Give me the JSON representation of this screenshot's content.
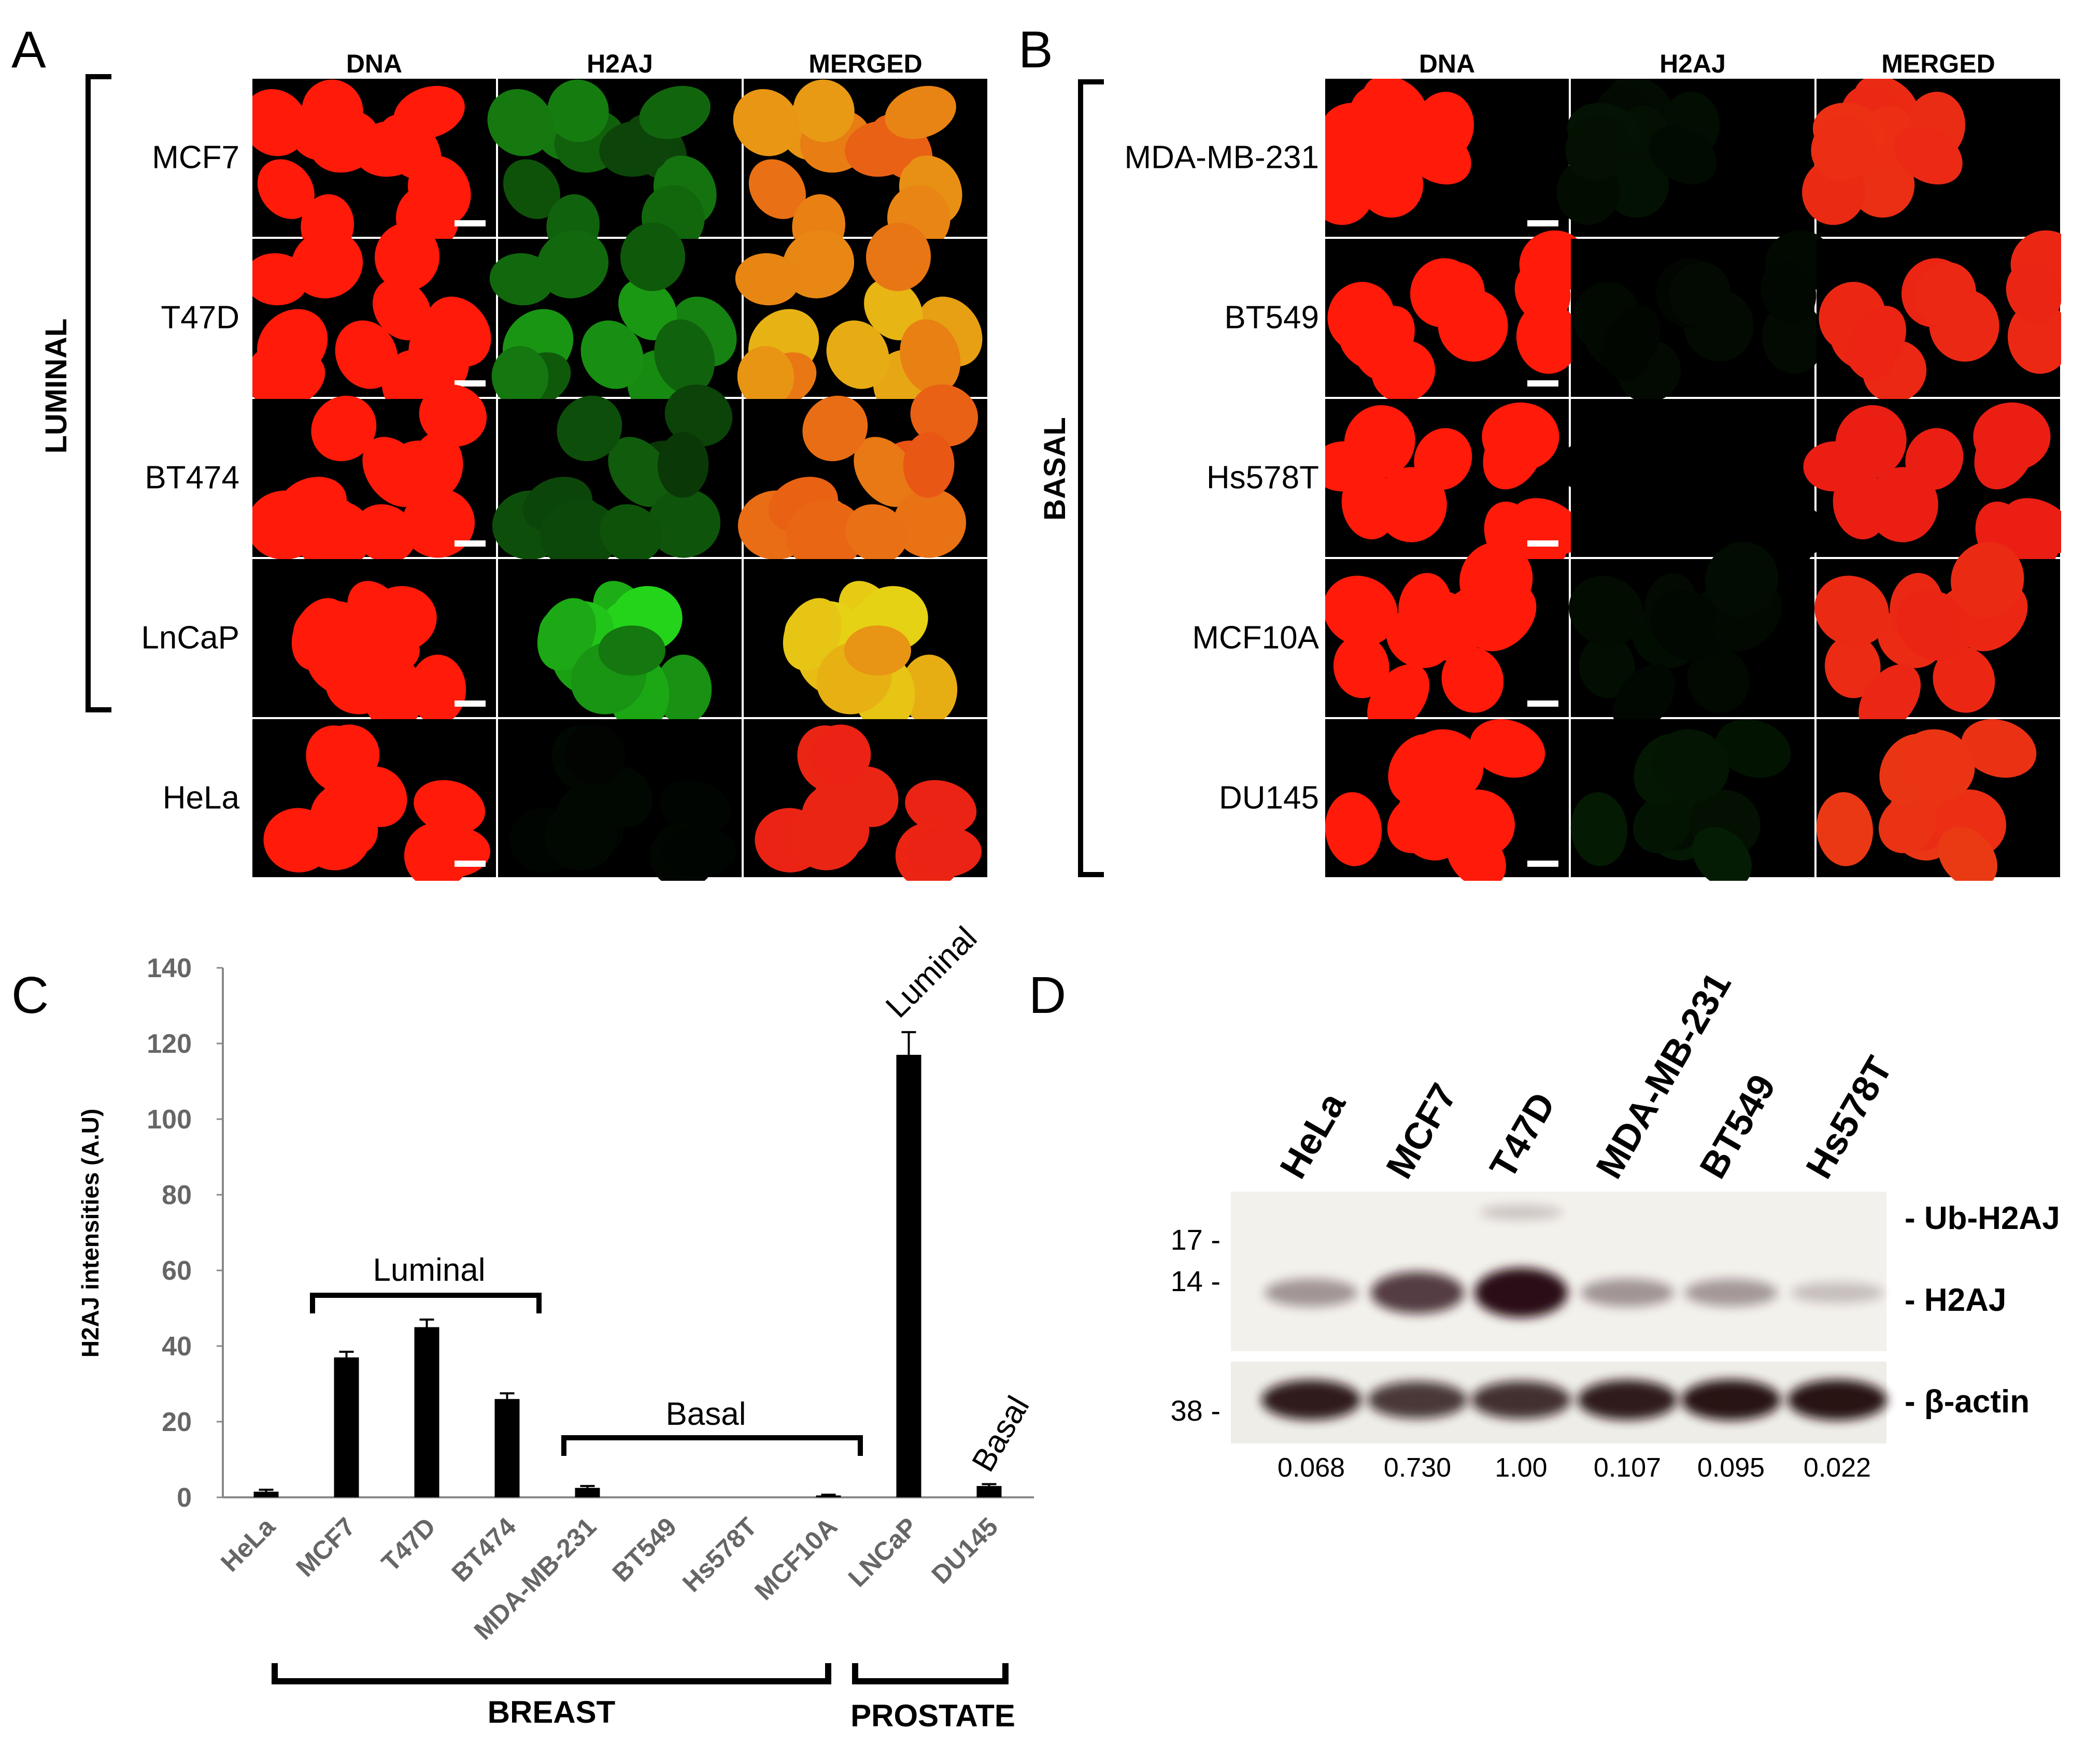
{
  "panel_labels": {
    "a": "A",
    "b": "B",
    "c": "C",
    "d": "D"
  },
  "panel_a": {
    "columns": [
      "DNA",
      "H2AJ",
      "MERGED"
    ],
    "group_label": "LUMINAL",
    "rows": [
      "MCF7",
      "T47D",
      "BT474",
      "LnCaP",
      "HeLa"
    ],
    "h2aj_level": [
      0.55,
      0.65,
      0.4,
      0.95,
      0.03
    ]
  },
  "panel_b": {
    "columns": [
      "DNA",
      "H2AJ",
      "MERGED"
    ],
    "group_label": "BASAL",
    "rows": [
      "MDA-MB-231",
      "BT549",
      "Hs578T",
      "MCF10A",
      "DU145"
    ],
    "h2aj_level": [
      0.08,
      0.05,
      0.0,
      0.06,
      0.12
    ]
  },
  "chart_data": {
    "type": "bar",
    "title": "",
    "ylabel": "H2AJ intensities (A.U)",
    "xlabel": "",
    "ylim": [
      0,
      140
    ],
    "yticks": [
      "0",
      "20",
      "40",
      "60",
      "80",
      "100",
      "120",
      "140"
    ],
    "categories": [
      "HeLa",
      "MCF7",
      "T47D",
      "BT474",
      "MDA-MB-231",
      "BT549",
      "Hs578T",
      "MCF10A",
      "LNCaP",
      "DU145"
    ],
    "values": [
      1.5,
      37,
      45,
      26,
      2.5,
      0,
      0,
      0.5,
      117,
      3
    ],
    "errors": [
      0.5,
      1.5,
      2,
      1.5,
      0.5,
      0,
      0,
      0.2,
      6,
      0.5
    ],
    "annotations": {
      "luminal_breast": "Luminal",
      "basal_breast": "Basal",
      "luminal_prostate": "Luminal",
      "basal_prostate": "Basal"
    },
    "groups": {
      "breast": "BREAST",
      "prostate": "PROSTATE"
    }
  },
  "panel_d": {
    "lanes": [
      "HeLa",
      "MCF7",
      "T47D",
      "MDA-MB-231",
      "BT549",
      "Hs578T"
    ],
    "markers": [
      "17 -",
      "14 -",
      "38 -"
    ],
    "band_labels": [
      "- Ub-H2AJ",
      "- H2AJ",
      "- β-actin"
    ],
    "quantification": [
      "0.068",
      "0.730",
      "1.00",
      "0.107",
      "0.095",
      "0.022"
    ],
    "h2aj_band_strength": [
      0.3,
      0.75,
      1.0,
      0.3,
      0.28,
      0.08
    ],
    "ub_band_strength": [
      0,
      0,
      0.2,
      0,
      0,
      0
    ],
    "actin_band_strength": [
      0.9,
      0.7,
      0.75,
      0.9,
      0.95,
      0.95
    ]
  },
  "colors": {
    "dna": "#ff1a0a",
    "h2aj": "#1ec81e",
    "merged": "#e38a10",
    "bar": "#000000"
  }
}
